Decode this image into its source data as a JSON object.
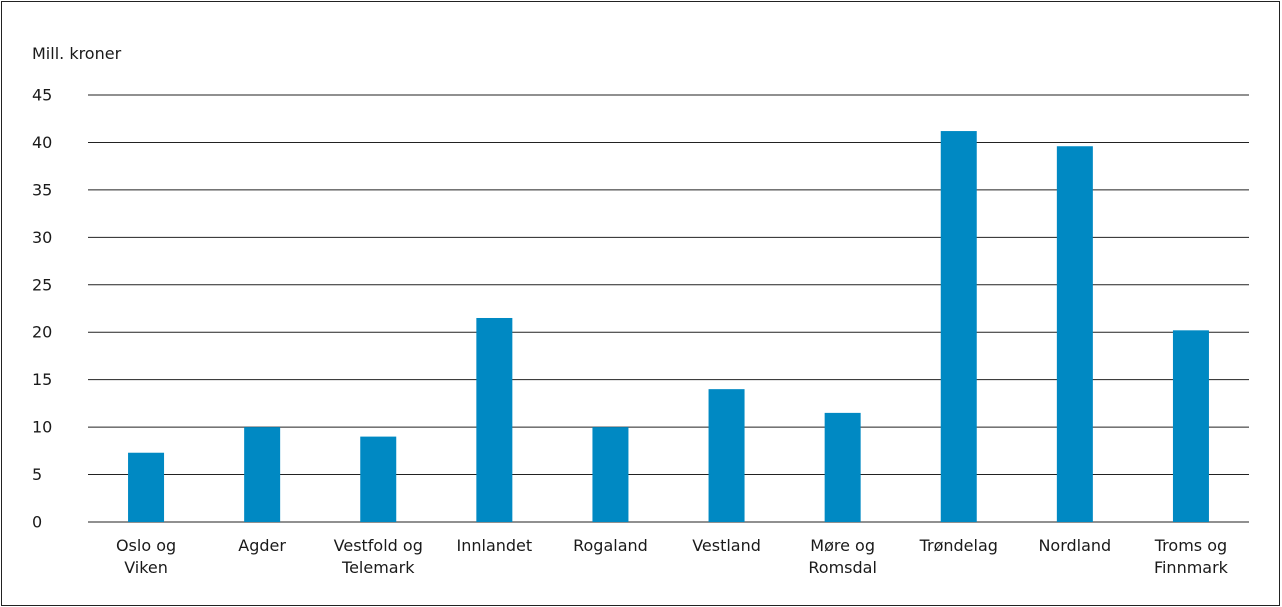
{
  "chart_data": {
    "type": "bar",
    "title": "",
    "xlabel": "",
    "ylabel": "Mill. kroner",
    "ylim": [
      0,
      45
    ],
    "yticks": [
      0,
      5,
      10,
      15,
      20,
      25,
      30,
      35,
      40,
      45
    ],
    "grid": true,
    "legend": "none",
    "categories": [
      [
        "Oslo og",
        "Viken"
      ],
      [
        "Agder"
      ],
      [
        "Vestfold og",
        "Telemark"
      ],
      [
        "Innlandet"
      ],
      [
        "Rogaland"
      ],
      [
        "Vestland"
      ],
      [
        "Møre og",
        "Romsdal"
      ],
      [
        "Trøndelag"
      ],
      [
        "Nordland"
      ],
      [
        "Troms og",
        "Finnmark"
      ]
    ],
    "values": [
      7.3,
      10.0,
      9.0,
      21.5,
      10.0,
      14.0,
      11.5,
      41.2,
      39.6,
      20.2
    ],
    "colors": {
      "bar": "#0089c3",
      "grid": "#222222",
      "text": "#1a1a1a"
    }
  }
}
